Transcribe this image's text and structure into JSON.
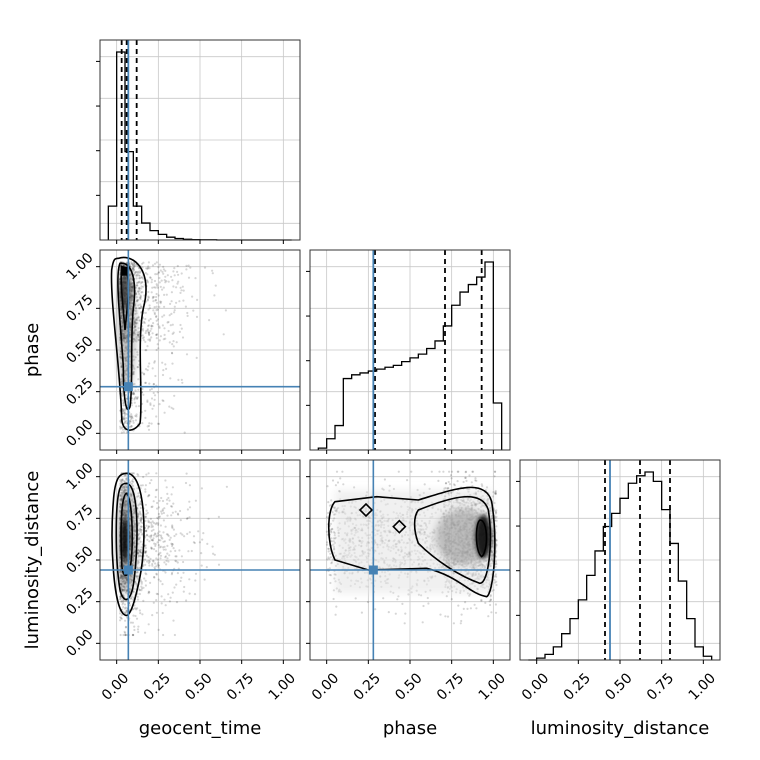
{
  "chart_data": {
    "type": "corner",
    "parameters": [
      "geocent_time",
      "phase",
      "luminosity_distance"
    ],
    "tick_labels": [
      "0.00",
      "0.25",
      "0.50",
      "0.75",
      "1.00"
    ],
    "axis_range": [
      -0.1,
      1.1
    ],
    "grid": true,
    "truths": {
      "geocent_time": 0.07,
      "phase": 0.28,
      "luminosity_distance": 0.44
    },
    "truth_color": "#4682b4",
    "quantiles": {
      "geocent_time": [
        0.03,
        0.06,
        0.12
      ],
      "phase": [
        0.29,
        0.71,
        0.93
      ],
      "luminosity_distance": [
        0.41,
        0.62,
        0.8
      ]
    },
    "histograms": {
      "geocent_time": {
        "bin_edges": [
          -0.05,
          0.0,
          0.05,
          0.1,
          0.15,
          0.2,
          0.25,
          0.3,
          0.35,
          0.4,
          0.45,
          0.5,
          0.55,
          0.6,
          0.65,
          0.7,
          0.75,
          0.8,
          0.85,
          0.9,
          0.95,
          1.0,
          1.05
        ],
        "counts": [
          0.18,
          1.0,
          0.47,
          0.18,
          0.09,
          0.05,
          0.03,
          0.015,
          0.008,
          0.004,
          0.002,
          0.001,
          0.001,
          0,
          0,
          0,
          0,
          0,
          0,
          0,
          0,
          0
        ]
      },
      "phase": {
        "bin_edges": [
          -0.05,
          0.0,
          0.05,
          0.1,
          0.15,
          0.2,
          0.25,
          0.3,
          0.35,
          0.4,
          0.45,
          0.5,
          0.55,
          0.6,
          0.65,
          0.7,
          0.75,
          0.8,
          0.85,
          0.9,
          0.95,
          1.0,
          1.05
        ],
        "counts": [
          0.01,
          0.06,
          0.13,
          0.38,
          0.4,
          0.41,
          0.42,
          0.43,
          0.44,
          0.45,
          0.47,
          0.49,
          0.51,
          0.54,
          0.58,
          0.66,
          0.77,
          0.84,
          0.88,
          0.92,
          1.0,
          0.25
        ]
      },
      "luminosity_distance": {
        "bin_edges": [
          -0.05,
          0.0,
          0.05,
          0.1,
          0.15,
          0.2,
          0.25,
          0.3,
          0.35,
          0.4,
          0.45,
          0.5,
          0.55,
          0.6,
          0.65,
          0.7,
          0.75,
          0.8,
          0.85,
          0.9,
          0.95,
          1.0,
          1.05
        ],
        "counts": [
          0.0,
          0.01,
          0.03,
          0.07,
          0.14,
          0.22,
          0.32,
          0.45,
          0.58,
          0.71,
          0.78,
          0.86,
          0.94,
          0.98,
          1.0,
          0.95,
          0.8,
          0.62,
          0.42,
          0.22,
          0.07,
          0.02
        ]
      }
    },
    "panels_2d": [
      {
        "x": "geocent_time",
        "y": "phase"
      },
      {
        "x": "geocent_time",
        "y": "luminosity_distance"
      },
      {
        "x": "phase",
        "y": "luminosity_distance"
      }
    ]
  }
}
